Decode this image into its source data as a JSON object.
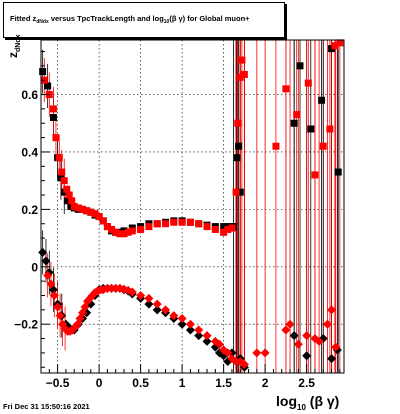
{
  "title": {
    "part1": "Fitted  z",
    "part1_sub": "dNdx",
    "part2": "  versus TpcTrackLength and log",
    "part2_sub": "10",
    "part3": "(β γ) for Global muon+"
  },
  "ylabel": {
    "main": "z",
    "sub": "dNdx"
  },
  "xlabel": {
    "main": "log",
    "sub": "10",
    "rest": "(β γ)"
  },
  "timestamp": "Fri Dec 31 15:50:16 2021",
  "chart_data": {
    "type": "scatter",
    "xlim": [
      -0.7,
      2.95
    ],
    "ylim": [
      -0.37,
      0.79
    ],
    "xticks": [
      -0.5,
      0,
      0.5,
      1,
      1.5,
      2,
      2.5
    ],
    "xtick_labels": [
      "−0.5",
      "0",
      "0.5",
      "1",
      "1.5",
      "2",
      "2.5"
    ],
    "yticks": [
      -0.2,
      0,
      0.2,
      0.4,
      0.6
    ],
    "ytick_labels": [
      "−0.2",
      "0",
      "0.2",
      "0.4",
      "0.6"
    ],
    "grid": true,
    "colors": {
      "black": "#000000",
      "red": "#ff0000"
    },
    "series": [
      {
        "color": "black",
        "marker": "square",
        "part": "upper band",
        "x": [
          -0.68,
          -0.62,
          -0.55,
          -0.5,
          -0.46,
          -0.42,
          -0.38,
          -0.34,
          -0.3,
          -0.25,
          -0.2,
          -0.15,
          -0.1,
          -0.05,
          0,
          0.05,
          0.1,
          0.15,
          0.2,
          0.25,
          0.3,
          0.4,
          0.5,
          0.6,
          0.7,
          0.8,
          0.9,
          1,
          1.1,
          1.2,
          1.3,
          1.4,
          1.5,
          1.55,
          1.6,
          1.62,
          1.66,
          1.68,
          1.7,
          2.35,
          2.42,
          2.55,
          2.68,
          2.8,
          2.88
        ],
        "y": [
          0.68,
          0.63,
          0.52,
          0.38,
          0.31,
          0.26,
          0.23,
          0.21,
          0.205,
          0.2,
          0.2,
          0.195,
          0.19,
          0.18,
          0.175,
          0.16,
          0.14,
          0.125,
          0.12,
          0.12,
          0.125,
          0.135,
          0.14,
          0.15,
          0.15,
          0.155,
          0.16,
          0.16,
          0.155,
          0.15,
          0.145,
          0.14,
          0.14,
          0.14,
          0.14,
          0.14,
          0.38,
          0.42,
          0.26,
          0.5,
          0.7,
          0.48,
          0.58,
          0.76,
          0.33
        ]
      },
      {
        "color": "red",
        "marker": "square",
        "part": "upper band",
        "x": [
          -0.66,
          -0.6,
          -0.55,
          -0.52,
          -0.48,
          -0.45,
          -0.42,
          -0.39,
          -0.36,
          -0.33,
          -0.3,
          -0.25,
          -0.2,
          -0.15,
          -0.1,
          -0.05,
          0,
          0.05,
          0.1,
          0.15,
          0.2,
          0.25,
          0.3,
          0.35,
          0.4,
          0.5,
          0.6,
          0.7,
          0.8,
          0.9,
          1,
          1.1,
          1.2,
          1.3,
          1.4,
          1.5,
          1.55,
          1.6,
          1.65,
          1.67,
          1.7,
          1.72,
          1.75,
          2.13,
          2.25,
          2.38,
          2.52,
          2.6,
          2.7,
          2.78,
          2.84,
          2.9
        ],
        "y": [
          0.65,
          0.6,
          0.55,
          0.45,
          0.38,
          0.33,
          0.3,
          0.27,
          0.25,
          0.23,
          0.21,
          0.205,
          0.2,
          0.195,
          0.19,
          0.185,
          0.175,
          0.16,
          0.14,
          0.13,
          0.12,
          0.115,
          0.115,
          0.12,
          0.125,
          0.13,
          0.14,
          0.15,
          0.15,
          0.155,
          0.155,
          0.155,
          0.15,
          0.14,
          0.13,
          0.12,
          0.13,
          0.135,
          0.26,
          0.5,
          0.66,
          0.72,
          0.67,
          0.42,
          0.62,
          0.53,
          0.64,
          0.32,
          0.42,
          0.48,
          0.77,
          0.78
        ]
      },
      {
        "color": "black",
        "marker": "diamond",
        "part": "lower band",
        "x": [
          -0.68,
          -0.64,
          -0.6,
          -0.55,
          -0.5,
          -0.45,
          -0.4,
          -0.35,
          -0.3,
          -0.25,
          -0.2,
          -0.15,
          -0.1,
          -0.05,
          0,
          0.05,
          0.1,
          0.15,
          0.2,
          0.25,
          0.3,
          0.35,
          0.4,
          0.5,
          0.6,
          0.7,
          0.8,
          0.9,
          1,
          1.1,
          1.2,
          1.3,
          1.4,
          1.45,
          1.5,
          1.55,
          1.6,
          1.65,
          1.7,
          1.75,
          2.35,
          2.5,
          2.7,
          2.8,
          2.87
        ],
        "y": [
          0.05,
          0.02,
          -0.02,
          -0.08,
          -0.13,
          -0.17,
          -0.2,
          -0.215,
          -0.22,
          -0.2,
          -0.18,
          -0.16,
          -0.13,
          -0.1,
          -0.08,
          -0.075,
          -0.075,
          -0.075,
          -0.075,
          -0.075,
          -0.08,
          -0.085,
          -0.095,
          -0.11,
          -0.13,
          -0.15,
          -0.16,
          -0.18,
          -0.2,
          -0.22,
          -0.24,
          -0.26,
          -0.28,
          -0.3,
          -0.31,
          -0.33,
          -0.3,
          -0.33,
          -0.32,
          -0.35,
          -0.24,
          -0.31,
          -0.25,
          -0.32,
          -0.29
        ]
      },
      {
        "color": "red",
        "marker": "diamond",
        "part": "lower band",
        "x": [
          -0.62,
          -0.58,
          -0.54,
          -0.5,
          -0.47,
          -0.44,
          -0.41,
          -0.38,
          -0.35,
          -0.32,
          -0.29,
          -0.26,
          -0.23,
          -0.2,
          -0.17,
          -0.14,
          -0.11,
          -0.08,
          -0.05,
          -0.02,
          0.02,
          0.05,
          0.1,
          0.15,
          0.2,
          0.25,
          0.3,
          0.35,
          0.4,
          0.5,
          0.6,
          0.7,
          0.8,
          0.9,
          1,
          1.1,
          1.2,
          1.3,
          1.4,
          1.45,
          1.5,
          1.55,
          1.6,
          1.65,
          1.7,
          1.75,
          1.9,
          2.0,
          2.25,
          2.3,
          2.4,
          2.5,
          2.6,
          2.65,
          2.75,
          2.8,
          2.85
        ],
        "y": [
          -0.03,
          -0.06,
          -0.1,
          -0.14,
          -0.17,
          -0.2,
          -0.215,
          -0.225,
          -0.225,
          -0.22,
          -0.21,
          -0.2,
          -0.18,
          -0.16,
          -0.14,
          -0.12,
          -0.11,
          -0.1,
          -0.09,
          -0.085,
          -0.08,
          -0.08,
          -0.075,
          -0.075,
          -0.075,
          -0.075,
          -0.078,
          -0.082,
          -0.088,
          -0.1,
          -0.11,
          -0.13,
          -0.15,
          -0.17,
          -0.18,
          -0.2,
          -0.22,
          -0.24,
          -0.26,
          -0.27,
          -0.29,
          -0.3,
          -0.32,
          -0.33,
          -0.33,
          -0.34,
          -0.3,
          -0.3,
          -0.22,
          -0.2,
          -0.27,
          -0.24,
          -0.25,
          -0.26,
          -0.2,
          -0.15,
          -0.28
        ]
      }
    ]
  }
}
